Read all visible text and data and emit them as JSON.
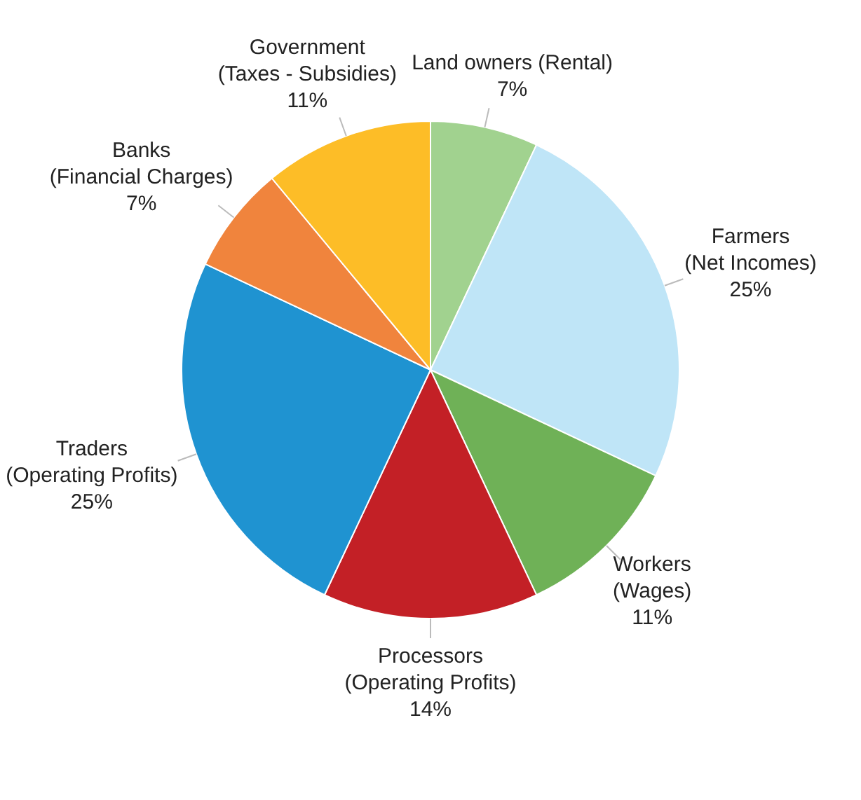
{
  "chart_data": {
    "type": "pie",
    "categories": [
      "Land owners (Rental)",
      "Farmers\n(Net Incomes)",
      "Workers\n(Wages)",
      "Processors\n(Operating Profits)",
      "Traders\n(Operating Profits)",
      "Banks\n(Financial Charges)",
      "Government\n(Taxes - Subsidies)"
    ],
    "values": [
      7,
      25,
      11,
      14,
      25,
      7,
      11
    ],
    "value_labels": [
      "7%",
      "25%",
      "11%",
      "14%",
      "25%",
      "7%",
      "11%"
    ],
    "colors": [
      "#a1d28f",
      "#bfe5f7",
      "#6fb157",
      "#c32026",
      "#1f93d1",
      "#f0843d",
      "#fdbd27"
    ],
    "legend": false
  }
}
